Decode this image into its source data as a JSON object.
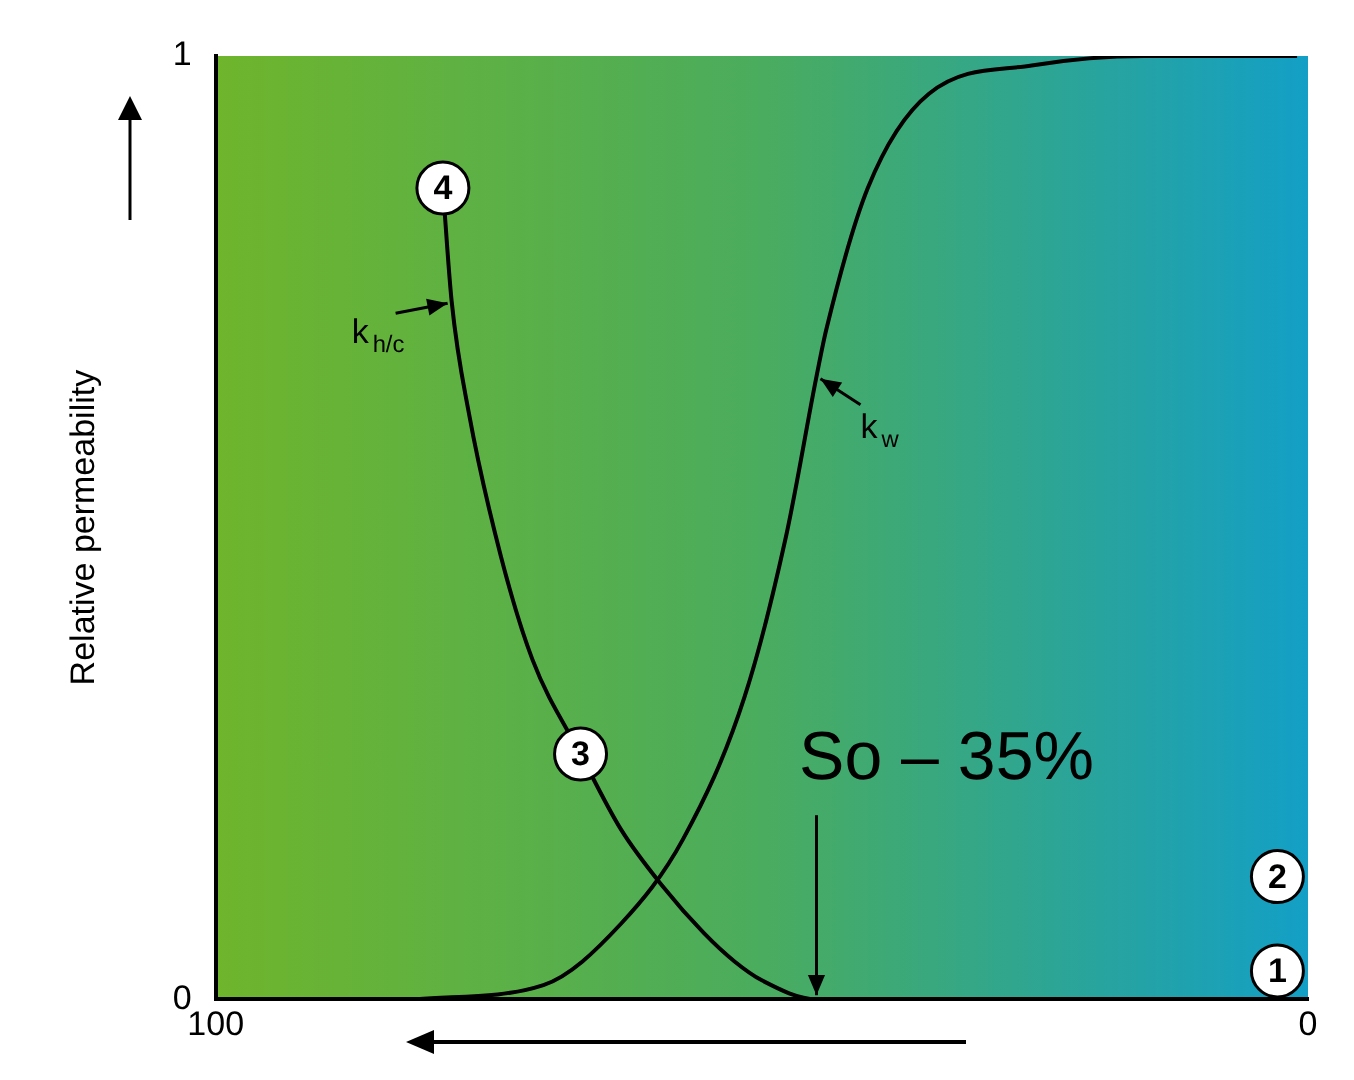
{
  "chart_data": {
    "type": "line",
    "ylabel": "Relative permeability",
    "xlim": [
      100,
      0
    ],
    "xticks": [
      100,
      0
    ],
    "ylim": [
      0,
      1
    ],
    "yticks": [
      0,
      1
    ],
    "grid": false,
    "legend": false,
    "marker": "none",
    "line_style": "solid",
    "series": [
      {
        "color": "#000000",
        "x": [
          79.2,
          78.4,
          76.8,
          73.9,
          71.0,
          66.6,
          62.9,
          59.1,
          55.3,
          52.5,
          50.0,
          45.0,
          35,
          20,
          8
        ],
        "values": [
          0.86,
          0.74,
          0.62,
          0.47,
          0.36,
          0.26,
          0.18,
          0.12,
          0.07,
          0.04,
          0.02,
          0.0,
          0,
          0,
          0
        ]
      },
      {
        "color": "#000000",
        "x": [
          81.6,
          70,
          62.9,
          57.2,
          51.6,
          47.8,
          45.0,
          44.1,
          40.3,
          34.7,
          25.3,
          15,
          1
        ],
        "values": [
          0,
          0.015,
          0.08,
          0.17,
          0.32,
          0.49,
          0.66,
          0.71,
          0.86,
          0.96,
          0.99,
          1,
          1
        ]
      }
    ],
    "annotations": [
      {
        "text": "k$_{h/c}$",
        "x": 78.4,
        "y": 0.74
      },
      {
        "text": "k$_{w}$",
        "x": 45.0,
        "y": 0.66
      },
      {
        "text": "4",
        "x": 79.2,
        "y": 0.86
      },
      {
        "text": "3",
        "x": 66.6,
        "y": 0.26
      },
      {
        "text": "2",
        "x": 2.8,
        "y": 0.13
      },
      {
        "text": "1",
        "x": 2.8,
        "y": 0.03
      },
      {
        "text": "So – 35%",
        "x": 45,
        "y": 0
      }
    ]
  }
}
